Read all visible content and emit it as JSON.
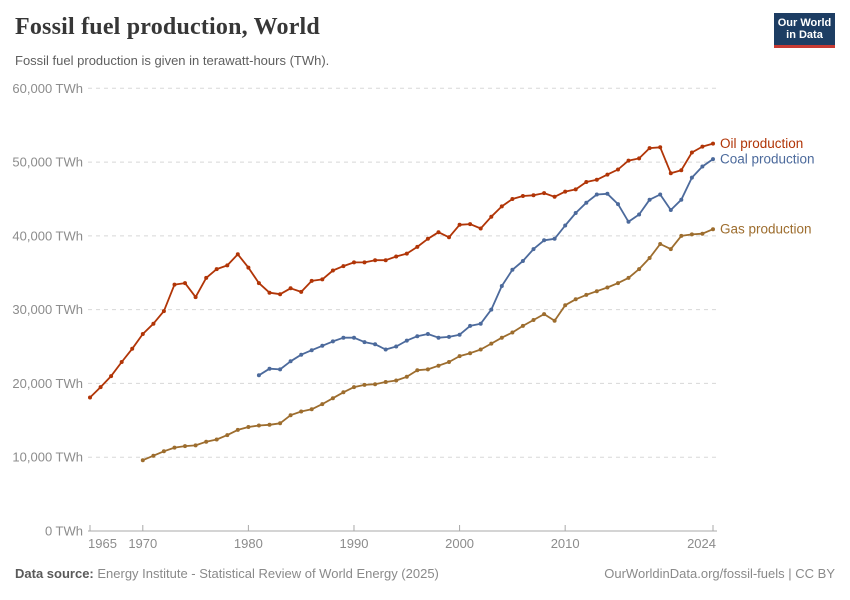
{
  "header": {
    "title": "Fossil fuel production, World",
    "subtitle": "Fossil fuel production is given in terawatt-hours (TWh).",
    "logo": {
      "line1": "Our World",
      "line2": "in Data"
    }
  },
  "footer": {
    "datasource_label": "Data source:",
    "datasource_text": " Energy Institute - Statistical Review of World Energy (2025)",
    "link": "OurWorldinData.org/fossil-fuels",
    "license_suffix": " | CC BY"
  },
  "colors": {
    "oil": "#b13507",
    "coal": "#4c6a9c",
    "gas": "#9d6d2e",
    "logo_bg": "#1d3d63",
    "logo_stripe": "#c73a33",
    "grid": "#d8d8d8",
    "axis": "#a8a8a8",
    "tick_text": "#8c8c8c"
  },
  "chart_data": {
    "type": "line",
    "title": "Fossil fuel production, World",
    "subtitle": "Fossil fuel production is given in terawatt-hours (TWh).",
    "unit": "TWh",
    "xlim": [
      1965,
      2024
    ],
    "ylim": [
      0,
      60000
    ],
    "grid": "horizontal-dashed",
    "legend_position": "labels-at-line-ends",
    "x_ticks": [
      1965,
      1970,
      1980,
      1990,
      2000,
      2010,
      2024
    ],
    "y_ticks": [
      0,
      10000,
      20000,
      30000,
      40000,
      50000,
      60000
    ],
    "y_tick_labels": [
      "0 TWh",
      "10,000 TWh",
      "20,000 TWh",
      "30,000 TWh",
      "40,000 TWh",
      "50,000 TWh",
      "60,000 TWh"
    ],
    "series": [
      {
        "name": "Oil production",
        "color": "#b13507",
        "start_year": 1965,
        "values": [
          18100,
          19500,
          21000,
          22900,
          24700,
          26700,
          28100,
          29800,
          33400,
          33600,
          31700,
          34300,
          35500,
          36000,
          37500,
          35700,
          33600,
          32300,
          32100,
          32900,
          32400,
          33900,
          34100,
          35300,
          35900,
          36400,
          36400,
          36700,
          36700,
          37200,
          37600,
          38500,
          39600,
          40500,
          39800,
          41500,
          41600,
          41000,
          42600,
          44000,
          45000,
          45400,
          45500,
          45800,
          45300,
          46000,
          46300,
          47300,
          47600,
          48300,
          49000,
          50200,
          50500,
          51900,
          52000,
          48500,
          48900,
          51300,
          52100,
          52500
        ]
      },
      {
        "name": "Coal production",
        "color": "#4c6a9c",
        "start_year": 1981,
        "values": [
          21100,
          22000,
          21900,
          23000,
          23900,
          24500,
          25100,
          25700,
          26200,
          26200,
          25600,
          25300,
          24600,
          25000,
          25800,
          26400,
          26700,
          26200,
          26300,
          26600,
          27800,
          28100,
          30000,
          33200,
          35400,
          36600,
          38200,
          39400,
          39600,
          41400,
          43100,
          44500,
          45600,
          45700,
          44300,
          41900,
          42900,
          44900,
          45600,
          43500,
          44900,
          47900,
          49400,
          50400
        ]
      },
      {
        "name": "Gas production",
        "color": "#9d6d2e",
        "start_year": 1970,
        "values": [
          9600,
          10200,
          10800,
          11300,
          11500,
          11600,
          12100,
          12400,
          13000,
          13700,
          14100,
          14300,
          14400,
          14600,
          15700,
          16200,
          16500,
          17200,
          18000,
          18800,
          19500,
          19800,
          19900,
          20200,
          20400,
          20900,
          21800,
          21900,
          22400,
          22900,
          23700,
          24100,
          24600,
          25400,
          26200,
          26900,
          27800,
          28600,
          29400,
          28500,
          30600,
          31400,
          32000,
          32500,
          33000,
          33600,
          34300,
          35500,
          37000,
          38900,
          38200,
          40000,
          40200,
          40300,
          40900
        ]
      }
    ]
  }
}
